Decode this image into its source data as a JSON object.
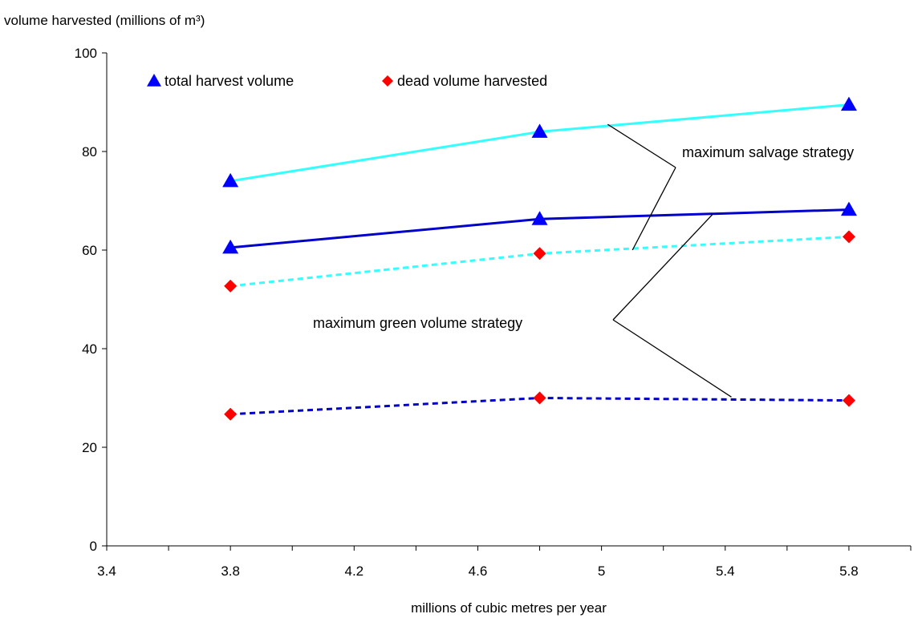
{
  "chart_data": {
    "type": "line",
    "ylabel": "volume harvested (millions of m³)",
    "xlabel": "millions of cubic metres per year",
    "xlim": [
      3.4,
      6.0
    ],
    "ylim": [
      0,
      100
    ],
    "x_ticks": [
      "3.4",
      "3.8",
      "4.2",
      "4.6",
      "5",
      "5.4",
      "5.8"
    ],
    "y_ticks": [
      "0",
      "20",
      "40",
      "60",
      "80",
      "100"
    ],
    "grid": false,
    "legend": {
      "placement": "top-left",
      "entries": [
        {
          "label": "total harvest volume",
          "marker": "triangle",
          "color": "#0000ff"
        },
        {
          "label": "dead volume harvested",
          "marker": "diamond",
          "color": "#ff0000"
        }
      ]
    },
    "series": [
      {
        "strategy": "maximum salvage strategy",
        "measure": "total harvest volume",
        "color": "#33ffff",
        "line": "solid",
        "marker": "triangle",
        "marker_color": "#0000ff",
        "x": [
          3.8,
          4.8,
          5.8
        ],
        "y": [
          74,
          84,
          89.5
        ]
      },
      {
        "strategy": "maximum green volume strategy",
        "measure": "total harvest volume",
        "color": "#0000cc",
        "line": "solid",
        "marker": "triangle",
        "marker_color": "#0000ff",
        "x": [
          3.8,
          4.8,
          5.8
        ],
        "y": [
          60.5,
          66.3,
          68.2
        ]
      },
      {
        "strategy": "maximum salvage strategy",
        "measure": "dead volume harvested",
        "color": "#33ffff",
        "line": "dotted",
        "marker": "diamond",
        "marker_color": "#ff0000",
        "x": [
          3.8,
          4.8,
          5.8
        ],
        "y": [
          52.7,
          59.3,
          62.7
        ]
      },
      {
        "strategy": "maximum green volume strategy",
        "measure": "dead volume harvested",
        "color": "#0000cc",
        "line": "dotted",
        "marker": "diamond",
        "marker_color": "#ff0000",
        "x": [
          3.8,
          4.8,
          5.8
        ],
        "y": [
          26.7,
          30,
          29.5
        ]
      }
    ],
    "annotations": [
      {
        "text": "maximum salvage strategy",
        "targets": [
          {
            "x": 5.02,
            "y": 85.5
          },
          {
            "x": 5.1,
            "y": 60
          }
        ]
      },
      {
        "text": "maximum green volume strategy",
        "targets": [
          {
            "x": 5.36,
            "y": 67.3
          },
          {
            "x": 5.42,
            "y": 30.2
          }
        ]
      }
    ]
  }
}
